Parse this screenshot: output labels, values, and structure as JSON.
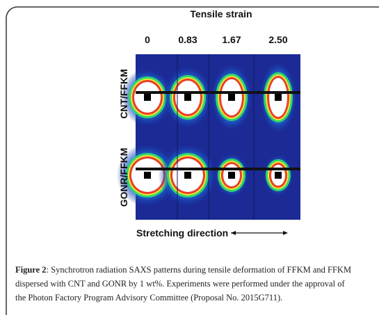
{
  "figure": {
    "title": "Tensile strain",
    "columns": [
      "0",
      "0.83",
      "1.67",
      "2.50"
    ],
    "rows": [
      "CNT/FFKM",
      "GONR/FFKM"
    ],
    "axis_label": "Stretching direction"
  },
  "caption": {
    "label": "Figure 2",
    "lines": [
      ": Synchrotron radiation SAXS patterns during tensile deformation of FFKM and FFKM",
      "dispersed with CNT and GONR by 1 wt%. Experiments were performed under the approval of",
      "the Photon Factory Program Advisory Committee (Proposal No. 2015G711)."
    ]
  }
}
